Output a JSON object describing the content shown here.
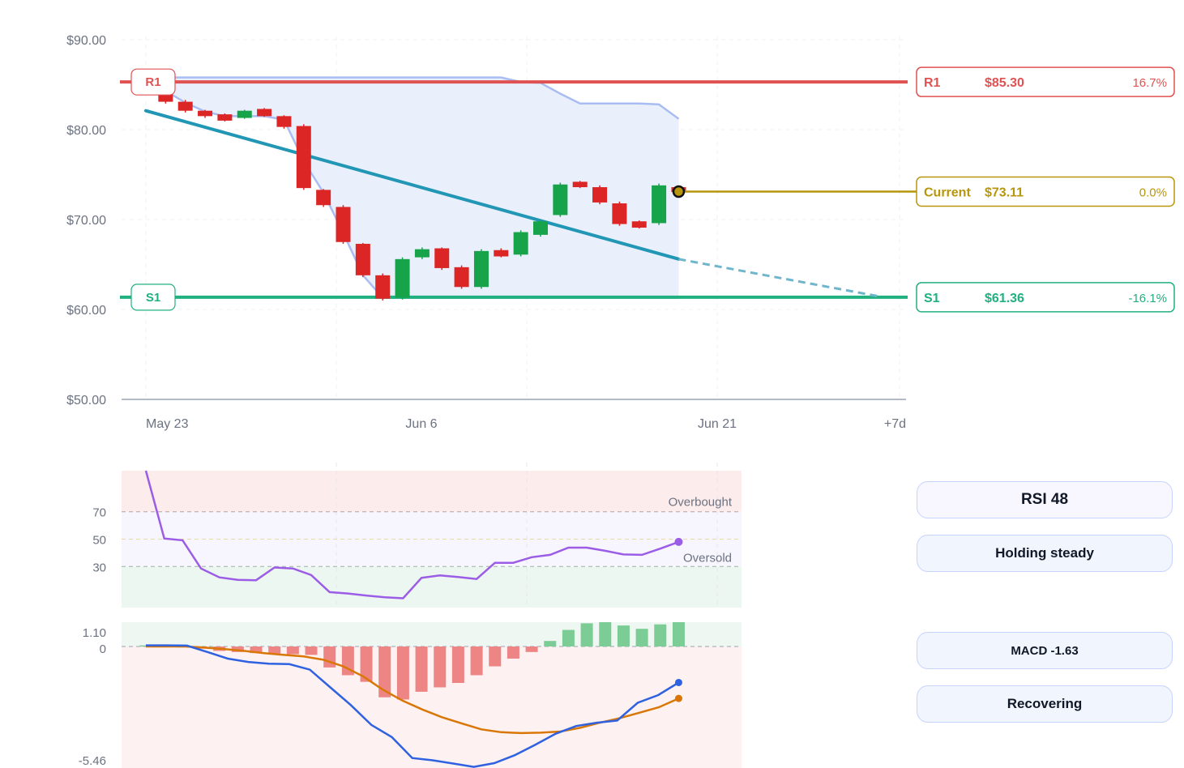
{
  "chart_data": [
    {
      "type": "candlestick",
      "x_axis_labels": [
        "May 23",
        "Jun 6",
        "Jun 21",
        "+7d"
      ],
      "y_tick_labels": [
        "$90.00",
        "$80.00",
        "$70.00",
        "$60.00",
        "$50.00"
      ],
      "ylim": [
        50,
        90
      ],
      "candles": [
        {
          "o": 85.5,
          "c": 84.7,
          "h": 85.9,
          "l": 84.5
        },
        {
          "o": 84.6,
          "c": 83.1,
          "h": 84.9,
          "l": 82.9
        },
        {
          "o": 83.1,
          "c": 82.1,
          "h": 83.3,
          "l": 81.9
        },
        {
          "o": 82.1,
          "c": 81.5,
          "h": 82.2,
          "l": 81.3
        },
        {
          "o": 81.7,
          "c": 81.0,
          "h": 81.8,
          "l": 80.9
        },
        {
          "o": 81.3,
          "c": 82.1,
          "h": 82.2,
          "l": 81.2
        },
        {
          "o": 82.3,
          "c": 81.5,
          "h": 82.4,
          "l": 81.4
        },
        {
          "o": 81.5,
          "c": 80.3,
          "h": 81.6,
          "l": 80.1
        },
        {
          "o": 80.4,
          "c": 73.5,
          "h": 80.6,
          "l": 73.3
        },
        {
          "o": 73.3,
          "c": 71.6,
          "h": 73.4,
          "l": 71.4
        },
        {
          "o": 71.4,
          "c": 67.5,
          "h": 71.6,
          "l": 67.3
        },
        {
          "o": 67.3,
          "c": 63.8,
          "h": 67.4,
          "l": 63.6
        },
        {
          "o": 63.8,
          "c": 61.2,
          "h": 64.0,
          "l": 61.0
        },
        {
          "o": 61.3,
          "c": 65.6,
          "h": 65.8,
          "l": 61.1
        },
        {
          "o": 65.8,
          "c": 66.7,
          "h": 66.9,
          "l": 65.6
        },
        {
          "o": 66.8,
          "c": 64.6,
          "h": 66.9,
          "l": 64.4
        },
        {
          "o": 64.7,
          "c": 62.5,
          "h": 64.9,
          "l": 62.3
        },
        {
          "o": 62.5,
          "c": 66.5,
          "h": 66.7,
          "l": 62.3
        },
        {
          "o": 66.6,
          "c": 65.9,
          "h": 66.8,
          "l": 65.8
        },
        {
          "o": 66.1,
          "c": 68.6,
          "h": 68.8,
          "l": 65.9
        },
        {
          "o": 68.3,
          "c": 69.8,
          "h": 70.0,
          "l": 68.1
        },
        {
          "o": 70.5,
          "c": 73.9,
          "h": 74.1,
          "l": 70.3
        },
        {
          "o": 74.2,
          "c": 73.6,
          "h": 74.3,
          "l": 73.5
        },
        {
          "o": 73.6,
          "c": 71.9,
          "h": 73.8,
          "l": 71.7
        },
        {
          "o": 71.8,
          "c": 69.5,
          "h": 72.0,
          "l": 69.3
        },
        {
          "o": 69.8,
          "c": 69.1,
          "h": 69.9,
          "l": 69.0
        },
        {
          "o": 69.6,
          "c": 73.8,
          "h": 74.0,
          "l": 69.4
        },
        {
          "o": 73.6,
          "c": 73.11,
          "h": 73.7,
          "l": 72.9
        }
      ],
      "channel_upper": [
        85.8,
        85.8,
        85.8,
        85.8,
        85.8,
        85.8,
        85.8,
        85.8,
        85.8,
        85.8,
        85.8,
        85.8,
        85.8,
        85.8,
        85.8,
        85.8,
        85.8,
        85.8,
        85.8,
        85.3,
        85.2,
        84.0,
        82.9,
        82.9,
        82.9,
        82.9,
        82.8,
        81.2
      ],
      "channel_lower": [
        85.5,
        84.3,
        83.0,
        82.0,
        81.5,
        81.5,
        81.5,
        81.1,
        76.5,
        73.0,
        68.5,
        63.8,
        61.3,
        61.3,
        61.3,
        61.3,
        61.3,
        61.3,
        61.3,
        61.3,
        61.3,
        61.3,
        61.3,
        61.3,
        61.3,
        61.3,
        61.3,
        61.3
      ],
      "trendline": {
        "start": 82.1,
        "end": 65.6,
        "projection_end": 61.4
      },
      "levels": [
        {
          "key": "R1",
          "tag": "R1",
          "price": "$85.30",
          "pct": "16.7%",
          "value": 85.3,
          "color": "#e05252"
        },
        {
          "key": "current",
          "tag": "Current",
          "price": "$73.11",
          "pct": "0.0%",
          "value": 73.11,
          "color": "#b8960c"
        },
        {
          "key": "S1",
          "tag": "S1",
          "price": "$61.36",
          "pct": "-16.1%",
          "value": 61.36,
          "color": "#21b07f"
        }
      ],
      "colors": {
        "up": "#16a34a",
        "down": "#dc2626",
        "channel": "#a9bdf2",
        "channel_fill": "#e9effb",
        "trend": "#2196b5"
      }
    },
    {
      "type": "line",
      "name": "RSI",
      "y_tick_labels": [
        "70",
        "50",
        "30"
      ],
      "ylim": [
        0,
        100
      ],
      "values": [
        100,
        50.5,
        49.2,
        28.6,
        22.1,
        20.3,
        20.0,
        29.3,
        28.6,
        23.8,
        11.3,
        10.3,
        8.8,
        7.5,
        6.8,
        21.7,
        23.5,
        22.3,
        20.9,
        32.7,
        32.7,
        36.8,
        38.5,
        43.8,
        43.8,
        41.5,
        38.8,
        38.5,
        43.1,
        48.0
      ],
      "bands": {
        "overbought": 70,
        "mid": 50,
        "oversold": 30
      },
      "band_labels": {
        "overbought": "Overbought",
        "oversold": "Oversold"
      },
      "colors": {
        "line": "#9b5de5",
        "top_zone": "#fdecec",
        "mid_zone": "#f7f5fd",
        "bottom_zone": "#edf7f2"
      }
    },
    {
      "type": "bar",
      "name": "MACD",
      "y_tick_labels": [
        "1.10",
        "0",
        "-5.46"
      ],
      "ylim": [
        -5.46,
        1.1
      ],
      "histogram": [
        0.05,
        0.03,
        0.01,
        -0.1,
        -0.2,
        -0.25,
        -0.3,
        -0.32,
        -0.35,
        -0.38,
        -0.95,
        -1.3,
        -1.6,
        -2.3,
        -2.4,
        -2.05,
        -1.85,
        -1.65,
        -1.3,
        -0.9,
        -0.55,
        -0.25,
        0.25,
        0.75,
        1.05,
        1.1,
        0.95,
        0.8,
        1.0,
        1.1
      ],
      "macd": [
        0.05,
        0.05,
        0.04,
        -0.25,
        -0.55,
        -0.7,
        -0.78,
        -0.8,
        -1.05,
        -1.85,
        -2.65,
        -3.55,
        -4.1,
        -5.05,
        -5.15,
        -5.3,
        -5.45,
        -5.28,
        -4.92,
        -4.45,
        -3.95,
        -3.6,
        -3.45,
        -3.35,
        -2.55,
        -2.2,
        -1.63
      ],
      "signal": [
        0,
        0,
        0,
        -0.05,
        -0.12,
        -0.2,
        -0.3,
        -0.38,
        -0.45,
        -0.6,
        -0.9,
        -1.35,
        -1.95,
        -2.45,
        -2.85,
        -3.2,
        -3.48,
        -3.75,
        -3.88,
        -3.92,
        -3.9,
        -3.85,
        -3.68,
        -3.45,
        -3.25,
        -3.0,
        -2.75,
        -2.35
      ],
      "colors": {
        "macd": "#2f62e0",
        "signal": "#d97706",
        "pos": "#7ccc95",
        "neg": "#ee8585",
        "top_zone": "#eef7f2",
        "bottom_zone": "#fdf1f1"
      }
    }
  ],
  "summary": {
    "rsi_title": "RSI 48",
    "rsi_status": "Holding steady",
    "macd_title": "MACD -1.63",
    "macd_status": "Recovering"
  }
}
